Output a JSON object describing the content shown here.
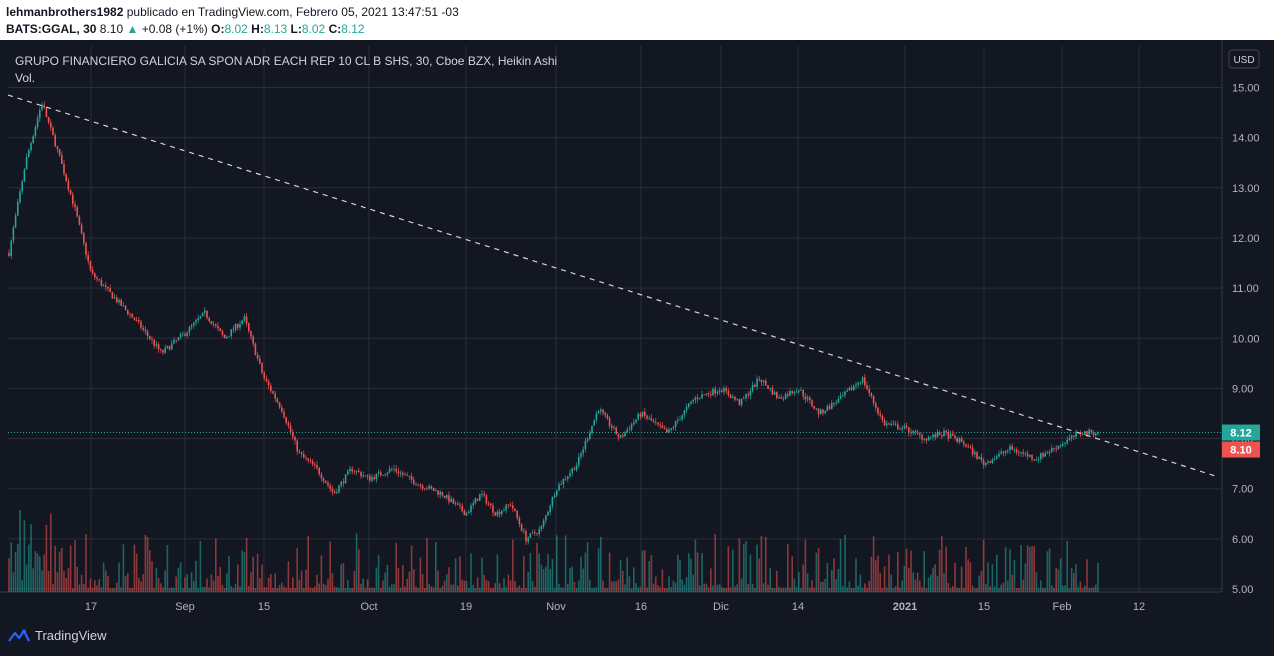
{
  "header": {
    "author": "lehmanbrothers1982",
    "published_text": "publicado en TradingView.com, Febrero 05, 2021 13:47:51 -03",
    "symbol": "BATS:GGAL, 30",
    "last": "8.10",
    "change_arrow": "▲",
    "change": "+0.08 (+1%)",
    "o_label": "O:",
    "o_value": "8.02",
    "h_label": "H:",
    "h_value": "8.13",
    "l_label": "L:",
    "l_value": "8.02",
    "c_label": "C:",
    "c_value": "8.12"
  },
  "legend": {
    "title": "GRUPO FINANCIERO GALICIA SA SPON ADR EACH REP 10 CL B SHS, 30, Cboe BZX, Heikin Ashi",
    "volume_label": "Vol."
  },
  "currency_button": "USD",
  "price_labels": {
    "current": "8.12",
    "current_color": "#26a69a",
    "previous": "8.10",
    "previous_color": "#ef5350"
  },
  "footer": {
    "brand": "TradingView",
    "logo_icon": "tradingview-logo-icon"
  },
  "colors": {
    "up": "#26a69a",
    "down": "#ef5350",
    "background": "#131722",
    "grid": "#2a2e39",
    "text": "#b2b5be"
  },
  "chart_data": {
    "type": "line",
    "chart_style": "heikin-ashi candlesticks with volume",
    "y_range": [
      5.0,
      15.0
    ],
    "y_ticks": [
      "15.00",
      "14.00",
      "13.00",
      "12.00",
      "11.00",
      "10.00",
      "9.00",
      "8.00",
      "7.00",
      "6.00",
      "5.00"
    ],
    "x_ticks": [
      "17",
      "Sep",
      "15",
      "Oct",
      "19",
      "Nov",
      "16",
      "Dic",
      "14",
      "2021",
      "15",
      "Feb",
      "12"
    ],
    "price_path": [
      [
        "start",
        11.7
      ],
      [
        "start",
        13.5
      ],
      [
        "start",
        14.7
      ],
      [
        "start",
        13.7
      ],
      [
        "start",
        12.6
      ],
      [
        "17",
        11.3
      ],
      [
        "17",
        10.8
      ],
      [
        "17",
        10.3
      ],
      [
        "17",
        9.7
      ],
      [
        "Sep",
        10.1
      ],
      [
        "Sep",
        10.5
      ],
      [
        "Sep",
        10.0
      ],
      [
        "Sep",
        10.4
      ],
      [
        "15",
        9.2
      ],
      [
        "15",
        8.6
      ],
      [
        "15",
        7.7
      ],
      [
        "15",
        7.4
      ],
      [
        "15",
        6.9
      ],
      [
        "15",
        7.4
      ],
      [
        "Oct",
        7.2
      ],
      [
        "Oct",
        7.4
      ],
      [
        "Oct",
        7.1
      ],
      [
        "Oct",
        6.9
      ],
      [
        "19",
        6.5
      ],
      [
        "19",
        6.9
      ],
      [
        "19",
        6.5
      ],
      [
        "19",
        6.7
      ],
      [
        "19",
        6.0
      ],
      [
        "19",
        6.2
      ],
      [
        "Nov",
        7.0
      ],
      [
        "Nov",
        7.5
      ],
      [
        "Nov",
        8.6
      ],
      [
        "Nov",
        8.0
      ],
      [
        "16",
        8.5
      ],
      [
        "16",
        8.1
      ],
      [
        "16",
        8.8
      ],
      [
        "Dic",
        9.0
      ],
      [
        "Dic",
        8.7
      ],
      [
        "Dic",
        9.2
      ],
      [
        "Dic",
        8.8
      ],
      [
        "14",
        9.0
      ],
      [
        "14",
        8.5
      ],
      [
        "14",
        8.8
      ],
      [
        "14",
        9.2
      ],
      [
        "14",
        8.3
      ],
      [
        "2021",
        8.2
      ],
      [
        "2021",
        8.0
      ],
      [
        "2021",
        8.1
      ],
      [
        "2021",
        7.9
      ],
      [
        "15",
        7.5
      ],
      [
        "15",
        7.8
      ],
      [
        "15",
        7.6
      ],
      [
        "Feb",
        7.9
      ],
      [
        "Feb",
        8.12
      ]
    ],
    "trendline": {
      "style": "dashed",
      "start_value": 14.85,
      "end_value": 7.25
    },
    "last_value": 8.12,
    "volume": "bars along bottom, colored by direction"
  }
}
